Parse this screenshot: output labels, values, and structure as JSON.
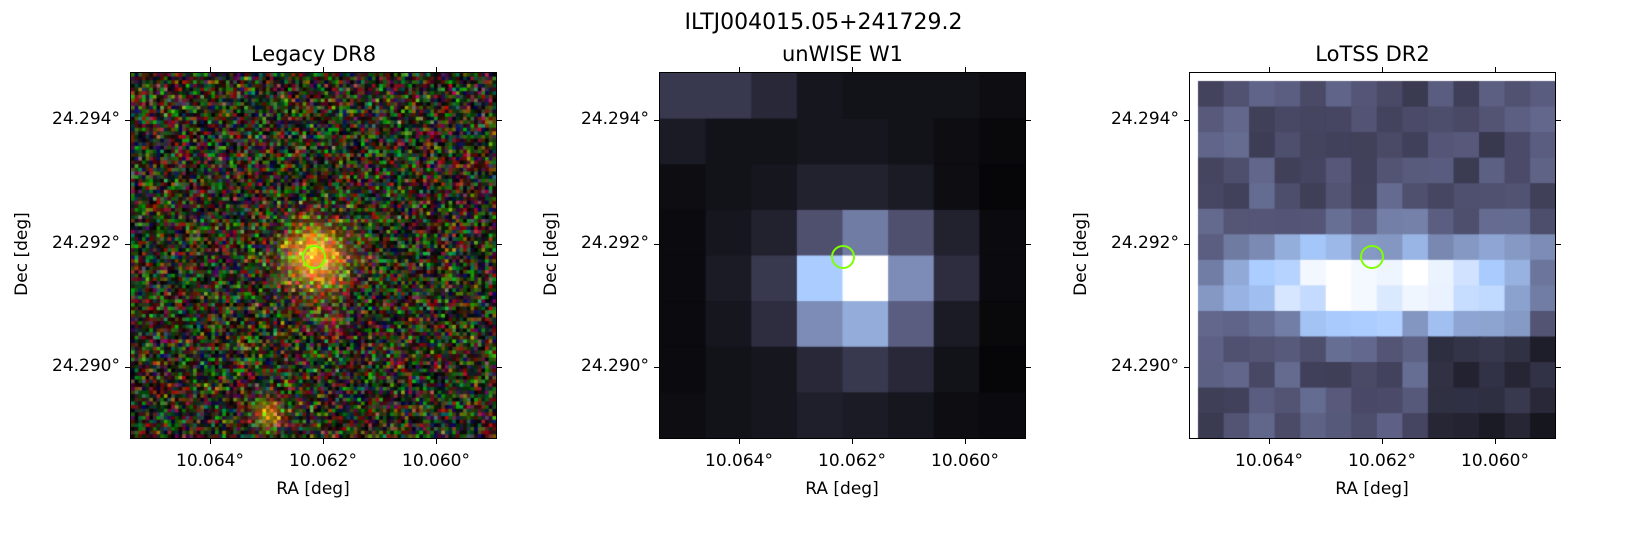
{
  "figure": {
    "title": "ILTJ004015.05+241729.2",
    "panels": [
      {
        "title": "Legacy DR8",
        "xlabel": "RA [deg]",
        "ylabel": "Dec [deg]",
        "xticks": [
          "10.064°",
          "10.062°",
          "10.060°"
        ],
        "yticks": [
          "24.294°",
          "24.292°",
          "24.290°"
        ],
        "image_kind": "rgb-noise",
        "marker_color": "#7fff00"
      },
      {
        "title": "unWISE W1",
        "xlabel": "RA [deg]",
        "ylabel": "Dec [deg]",
        "xticks": [
          "10.064°",
          "10.062°",
          "10.060°"
        ],
        "yticks": [
          "24.294°",
          "24.292°",
          "24.290°"
        ],
        "image_kind": "bone-grid",
        "marker_color": "#7fff00"
      },
      {
        "title": "LoTSS DR2",
        "xlabel": "RA [deg]",
        "ylabel": "Dec [deg]",
        "xticks": [
          "10.064°",
          "10.062°",
          "10.060°"
        ],
        "yticks": [
          "24.294°",
          "24.292°",
          "24.290°"
        ],
        "image_kind": "bone-grid",
        "marker_color": "#7fff00"
      }
    ]
  }
}
